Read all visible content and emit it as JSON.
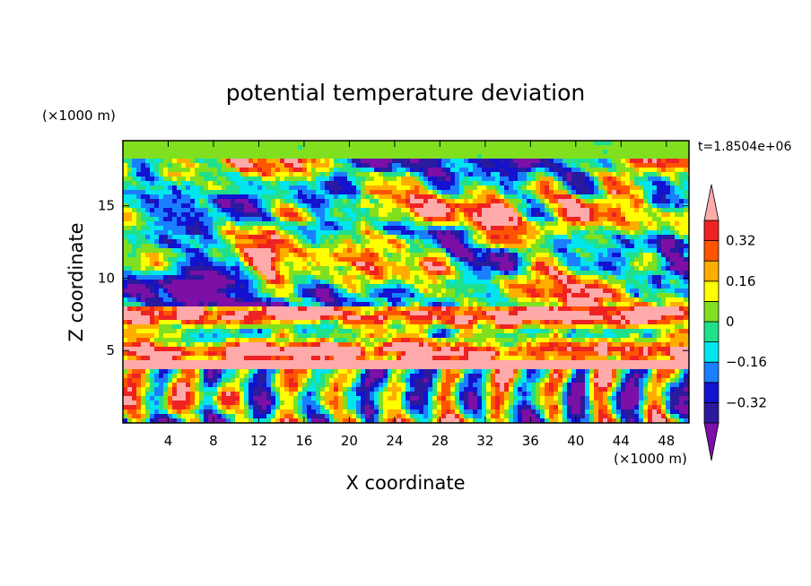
{
  "chart_data": {
    "type": "heatmap",
    "title": "potential temperature deviation",
    "xlabel": "X coordinate",
    "ylabel": "Z coordinate",
    "x_unit": "(×1000 m)",
    "y_unit": "(×1000 m)",
    "time_label": "t=1.8504e+06",
    "xlim": [
      0,
      50
    ],
    "ylim": [
      0,
      19.5
    ],
    "x_ticks": [
      4,
      8,
      12,
      16,
      20,
      24,
      28,
      32,
      36,
      40,
      44,
      48
    ],
    "y_ticks": [
      5,
      10,
      15
    ],
    "colorbar": {
      "levels": [
        -0.4,
        -0.32,
        -0.24,
        -0.16,
        -0.08,
        0,
        0.08,
        0.16,
        0.24,
        0.32,
        0.4
      ],
      "tick_labels": [
        "0.32",
        "0.16",
        "0",
        "−0.16",
        "−0.32"
      ],
      "tick_values": [
        0.32,
        0.16,
        0,
        -0.16,
        -0.32
      ],
      "colors_low_to_high": [
        "#7b0fa6",
        "#2a1a9e",
        "#1212d0",
        "#1a7fff",
        "#00e5ee",
        "#20e08c",
        "#80e020",
        "#ffff00",
        "#ffae00",
        "#ff5500",
        "#ee2222",
        "#ffaaaa"
      ],
      "extends": "both"
    },
    "colors": {
      "frame": "#000000",
      "background": "#ffffff"
    }
  }
}
